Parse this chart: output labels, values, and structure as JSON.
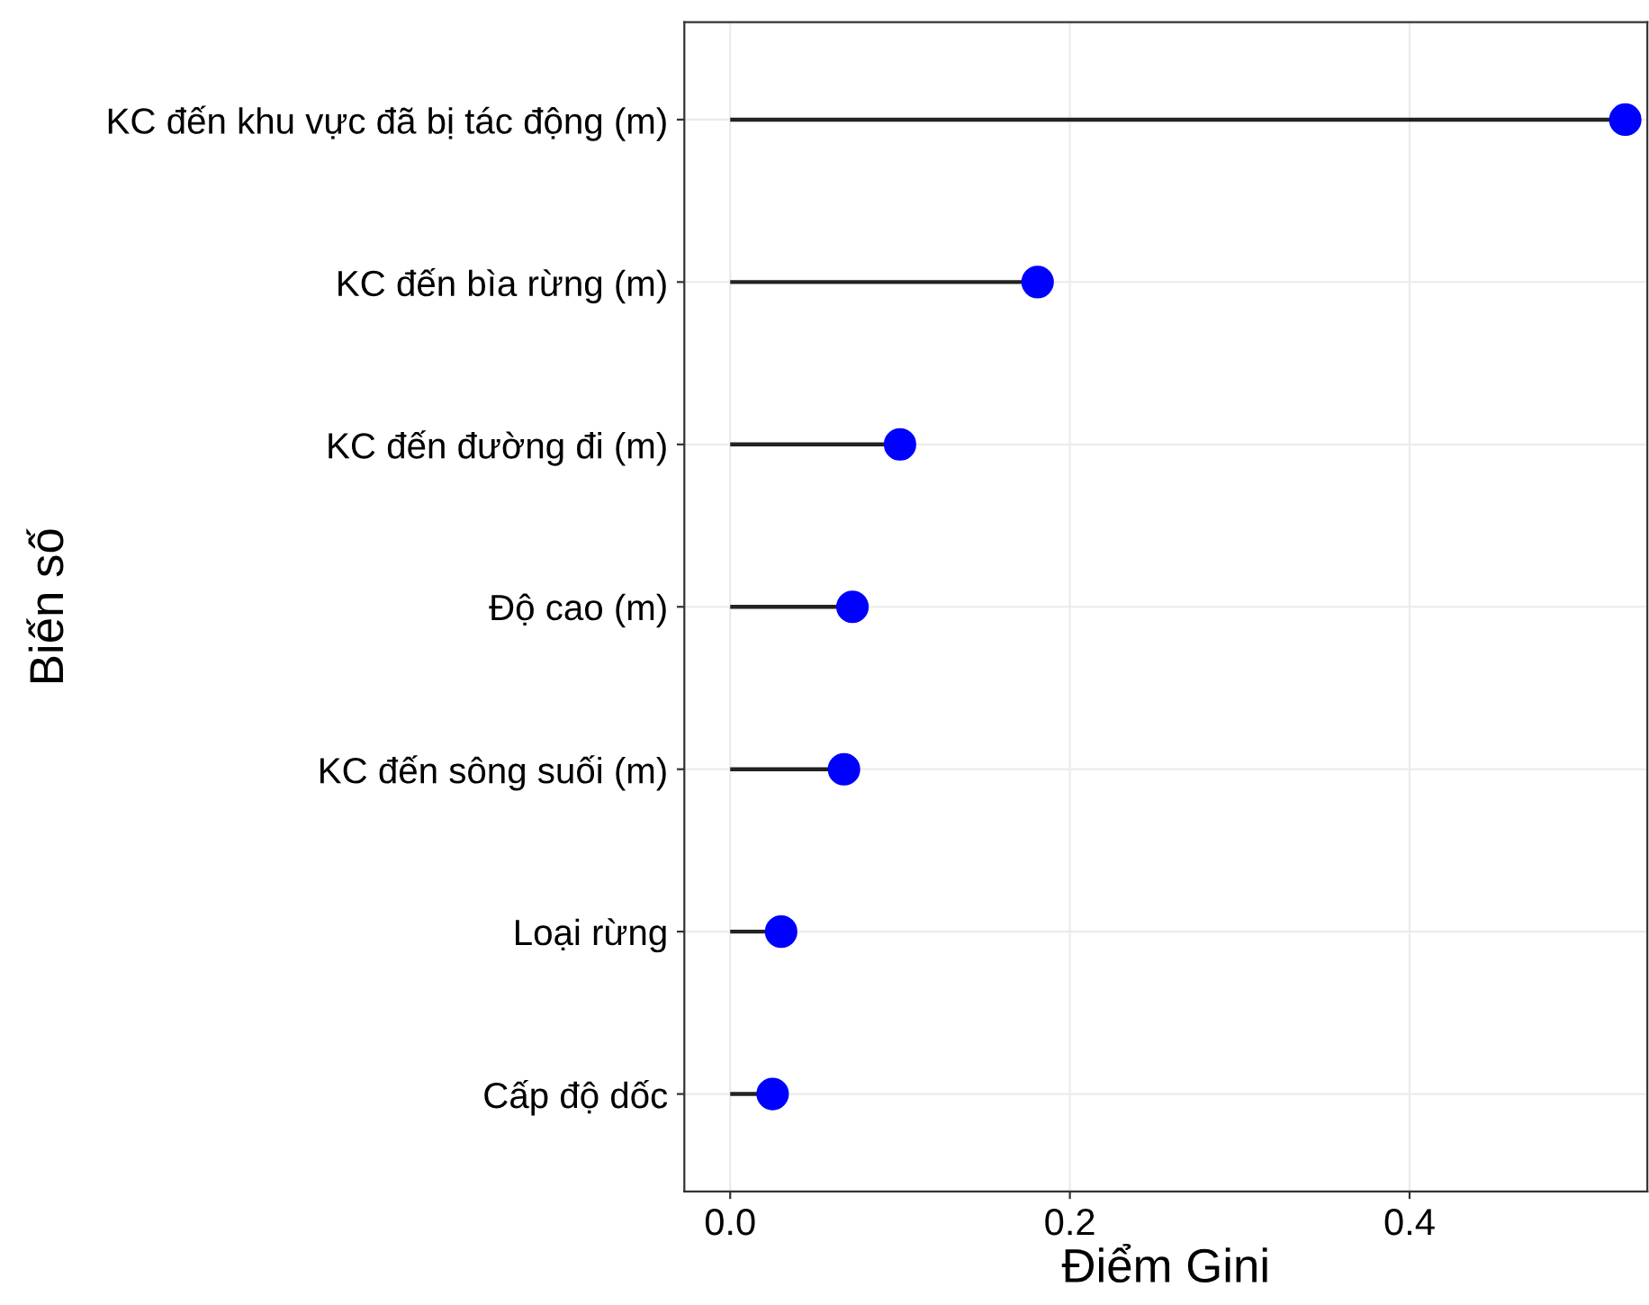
{
  "chart_data": {
    "type": "lollipop",
    "orientation": "horizontal",
    "xlabel": "Điểm Gini",
    "ylabel": "Biến số",
    "categories": [
      "KC đến khu vực đã bị tác động (m)",
      "KC đến bìa rừng (m)",
      "KC đến đường đi (m)",
      "Độ cao (m)",
      "KC đến sông suối (m)",
      "Loại rừng",
      "Cấp độ dốc"
    ],
    "values": [
      0.527,
      0.181,
      0.1,
      0.072,
      0.067,
      0.03,
      0.025
    ],
    "color": "#0000ff",
    "xlim": [
      -0.027,
      0.54
    ],
    "xticks": [
      {
        "value": 0,
        "label": "0.0"
      },
      0.2,
      0.4
    ],
    "grid": true,
    "marker": "circle"
  }
}
